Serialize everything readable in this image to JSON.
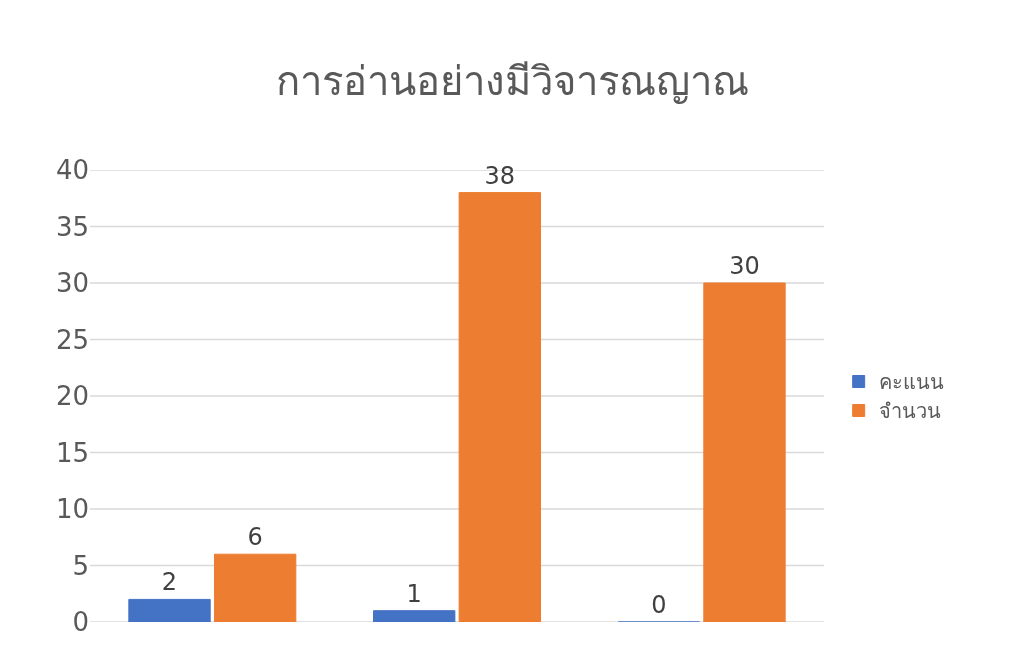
{
  "chart_data": {
    "type": "bar",
    "title": "การอ่านอย่างมีวิจารณญาณ",
    "categories": [
      null,
      null,
      null
    ],
    "series": [
      {
        "name": "คะแนน",
        "color": "#4472c4",
        "values": [
          2,
          1,
          0
        ]
      },
      {
        "name": "จำนวน",
        "color": "#ed7d31",
        "values": [
          6,
          38,
          30
        ]
      }
    ],
    "ylim": [
      0,
      40
    ],
    "yticks": [
      0,
      5,
      10,
      15,
      20,
      25,
      30,
      35,
      40
    ],
    "grid": "y",
    "legend": "right",
    "data_labels": true,
    "tick_labels": "y"
  }
}
